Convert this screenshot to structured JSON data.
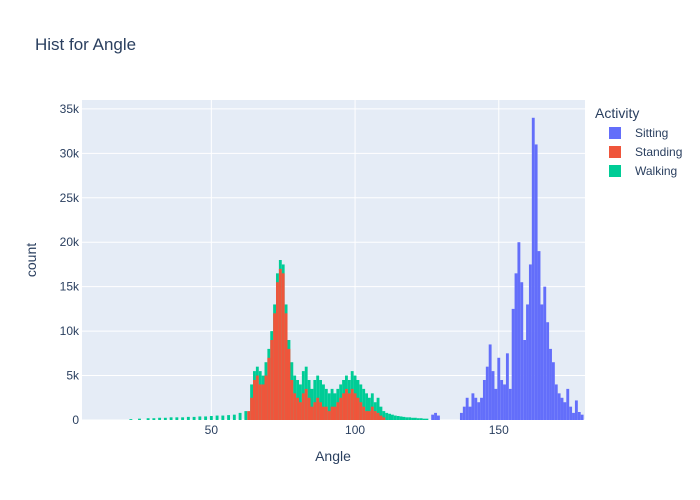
{
  "chart_data": {
    "type": "bar",
    "subtype": "histogram-overlay",
    "title": "Hist for Angle",
    "xlabel": "Angle",
    "ylabel": "count",
    "xlim": [
      5,
      180
    ],
    "ylim": [
      0,
      36000
    ],
    "xticks": [
      50,
      100,
      150
    ],
    "xtick_labels": [
      "50",
      "100",
      "150"
    ],
    "yticks": [
      0,
      5000,
      10000,
      15000,
      20000,
      25000,
      30000,
      35000
    ],
    "ytick_labels": [
      "0",
      "5k",
      "10k",
      "15k",
      "20k",
      "25k",
      "30k",
      "35k"
    ],
    "grid": true,
    "legend": {
      "title": "Activity",
      "position": "right"
    },
    "bin_width": 1,
    "series": [
      {
        "name": "Walking",
        "color": "#00cc96",
        "points": [
          [
            22,
            100
          ],
          [
            25,
            150
          ],
          [
            28,
            200
          ],
          [
            30,
            200
          ],
          [
            32,
            250
          ],
          [
            34,
            250
          ],
          [
            36,
            300
          ],
          [
            38,
            300
          ],
          [
            40,
            300
          ],
          [
            42,
            350
          ],
          [
            44,
            350
          ],
          [
            46,
            400
          ],
          [
            48,
            400
          ],
          [
            50,
            450
          ],
          [
            52,
            500
          ],
          [
            54,
            500
          ],
          [
            56,
            550
          ],
          [
            58,
            600
          ],
          [
            60,
            800
          ],
          [
            62,
            1000
          ],
          [
            64,
            4000
          ],
          [
            65,
            5500
          ],
          [
            66,
            6000
          ],
          [
            67,
            5500
          ],
          [
            68,
            5000
          ],
          [
            69,
            6500
          ],
          [
            70,
            8000
          ],
          [
            71,
            10000
          ],
          [
            72,
            13000
          ],
          [
            73,
            16500
          ],
          [
            74,
            18000
          ],
          [
            75,
            17500
          ],
          [
            76,
            13000
          ],
          [
            77,
            9000
          ],
          [
            78,
            6500
          ],
          [
            79,
            5000
          ],
          [
            80,
            4500
          ],
          [
            81,
            4000
          ],
          [
            82,
            5500
          ],
          [
            83,
            6000
          ],
          [
            84,
            4500
          ],
          [
            85,
            3500
          ],
          [
            86,
            4500
          ],
          [
            87,
            5000
          ],
          [
            88,
            4500
          ],
          [
            89,
            4000
          ],
          [
            90,
            3500
          ],
          [
            91,
            3000
          ],
          [
            92,
            3500
          ],
          [
            93,
            3000
          ],
          [
            94,
            3500
          ],
          [
            95,
            4000
          ],
          [
            96,
            4500
          ],
          [
            97,
            5000
          ],
          [
            98,
            4500
          ],
          [
            99,
            5500
          ],
          [
            100,
            5000
          ],
          [
            101,
            4500
          ],
          [
            102,
            4000
          ],
          [
            103,
            3500
          ],
          [
            104,
            3000
          ],
          [
            105,
            2500
          ],
          [
            106,
            3000
          ],
          [
            107,
            2000
          ],
          [
            108,
            2500
          ],
          [
            109,
            1500
          ],
          [
            110,
            1000
          ],
          [
            111,
            800
          ],
          [
            112,
            700
          ],
          [
            113,
            600
          ],
          [
            114,
            500
          ],
          [
            115,
            450
          ],
          [
            116,
            400
          ],
          [
            117,
            350
          ],
          [
            118,
            300
          ],
          [
            119,
            300
          ],
          [
            120,
            250
          ],
          [
            121,
            250
          ],
          [
            122,
            200
          ],
          [
            123,
            200
          ],
          [
            124,
            150
          ],
          [
            125,
            150
          ]
        ]
      },
      {
        "name": "Standing",
        "color": "#ef553b",
        "points": [
          [
            63,
            1000
          ],
          [
            64,
            2500
          ],
          [
            65,
            4500
          ],
          [
            66,
            5000
          ],
          [
            67,
            4000
          ],
          [
            68,
            4000
          ],
          [
            69,
            5000
          ],
          [
            70,
            7000
          ],
          [
            71,
            9000
          ],
          [
            72,
            12000
          ],
          [
            73,
            15500
          ],
          [
            74,
            17000
          ],
          [
            75,
            16500
          ],
          [
            76,
            12000
          ],
          [
            77,
            8000
          ],
          [
            78,
            4500
          ],
          [
            79,
            3000
          ],
          [
            80,
            2500
          ],
          [
            81,
            2000
          ],
          [
            82,
            3000
          ],
          [
            83,
            3500
          ],
          [
            84,
            2500
          ],
          [
            85,
            1500
          ],
          [
            86,
            2000
          ],
          [
            87,
            2500
          ],
          [
            88,
            2000
          ],
          [
            89,
            1500
          ],
          [
            90,
            1500
          ],
          [
            91,
            1000
          ],
          [
            92,
            1500
          ],
          [
            93,
            1500
          ],
          [
            94,
            2000
          ],
          [
            95,
            2500
          ],
          [
            96,
            3000
          ],
          [
            97,
            3500
          ],
          [
            98,
            3000
          ],
          [
            99,
            3500
          ],
          [
            100,
            3000
          ],
          [
            101,
            2500
          ],
          [
            102,
            2000
          ],
          [
            103,
            1500
          ],
          [
            104,
            1000
          ],
          [
            105,
            1000
          ],
          [
            106,
            1500
          ],
          [
            107,
            1000
          ],
          [
            108,
            800
          ],
          [
            109,
            500
          ],
          [
            110,
            300
          ]
        ]
      },
      {
        "name": "Sitting",
        "color": "#636efa",
        "points": [
          [
            127,
            600
          ],
          [
            128,
            800
          ],
          [
            129,
            500
          ],
          [
            137,
            800
          ],
          [
            138,
            1500
          ],
          [
            139,
            2500
          ],
          [
            140,
            1500
          ],
          [
            141,
            3000
          ],
          [
            142,
            2500
          ],
          [
            143,
            2000
          ],
          [
            144,
            2500
          ],
          [
            145,
            4500
          ],
          [
            146,
            6000
          ],
          [
            147,
            8500
          ],
          [
            148,
            5500
          ],
          [
            149,
            3500
          ],
          [
            150,
            7000
          ],
          [
            151,
            4500
          ],
          [
            152,
            4000
          ],
          [
            153,
            7500
          ],
          [
            154,
            3500
          ],
          [
            155,
            12500
          ],
          [
            156,
            16500
          ],
          [
            157,
            20000
          ],
          [
            158,
            15500
          ],
          [
            159,
            9000
          ],
          [
            160,
            13000
          ],
          [
            161,
            17500
          ],
          [
            162,
            34000
          ],
          [
            163,
            31000
          ],
          [
            164,
            19000
          ],
          [
            165,
            13000
          ],
          [
            166,
            15000
          ],
          [
            167,
            11000
          ],
          [
            168,
            8000
          ],
          [
            169,
            6500
          ],
          [
            170,
            4000
          ],
          [
            171,
            3000
          ],
          [
            172,
            2500
          ],
          [
            173,
            2000
          ],
          [
            174,
            3500
          ],
          [
            175,
            1500
          ],
          [
            176,
            800
          ],
          [
            177,
            2200
          ],
          [
            178,
            900
          ],
          [
            179,
            600
          ]
        ]
      }
    ]
  }
}
